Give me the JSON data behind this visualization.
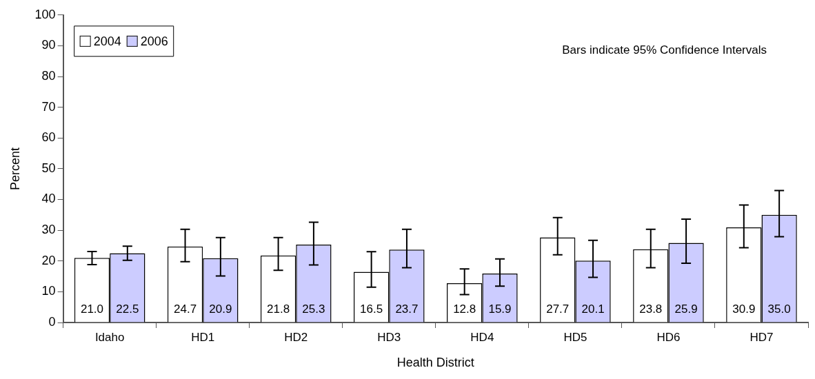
{
  "chart_data": {
    "type": "bar",
    "xlabel": "Health District",
    "ylabel": "Percent",
    "categories": [
      "Idaho",
      "HD1",
      "HD2",
      "HD3",
      "HD4",
      "HD5",
      "HD6",
      "HD7"
    ],
    "series": [
      {
        "name": "2004",
        "color": "#ffffff",
        "values": [
          21.0,
          24.7,
          21.8,
          16.5,
          12.8,
          27.7,
          23.8,
          30.9
        ],
        "value_labels": [
          "21.0",
          "24.7",
          "21.8",
          "16.5",
          "12.8",
          "27.7",
          "23.8",
          "30.9"
        ],
        "errors": [
          [
            18.8,
            23.1
          ],
          [
            19.8,
            30.3
          ],
          [
            17.0,
            27.6
          ],
          [
            11.5,
            23.0
          ],
          [
            9.1,
            17.4
          ],
          [
            22.0,
            34.1
          ],
          [
            17.8,
            30.3
          ],
          [
            24.3,
            38.2
          ]
        ]
      },
      {
        "name": "2006",
        "color": "#ccccff",
        "values": [
          22.5,
          20.9,
          25.3,
          23.7,
          15.9,
          20.1,
          25.9,
          35.0
        ],
        "value_labels": [
          "22.5",
          "20.9",
          "25.3",
          "23.7",
          "15.9",
          "20.1",
          "25.9",
          "35.0"
        ],
        "errors": [
          [
            20.2,
            24.8
          ],
          [
            15.1,
            27.6
          ],
          [
            18.7,
            32.6
          ],
          [
            17.8,
            30.3
          ],
          [
            11.8,
            20.7
          ],
          [
            14.7,
            26.7
          ],
          [
            19.3,
            33.6
          ],
          [
            27.9,
            42.9
          ]
        ]
      }
    ],
    "ylim": [
      0,
      100
    ],
    "yticks": [
      0,
      10,
      20,
      30,
      40,
      50,
      60,
      70,
      80,
      90,
      100
    ],
    "grid": false,
    "legend": "top left",
    "annotations": [
      "Bars indicate 95% Confidence Intervals"
    ]
  }
}
